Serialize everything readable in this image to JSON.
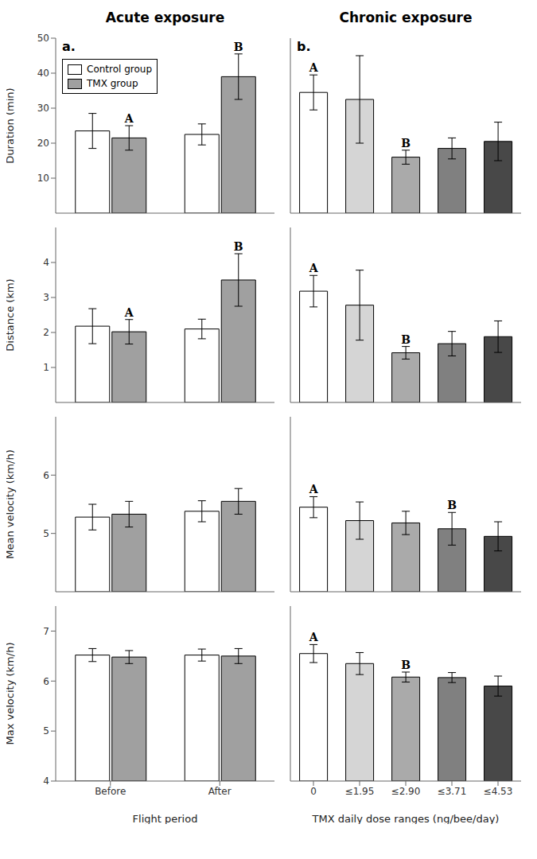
{
  "chart_data": [
    {
      "type": "bar",
      "title": "Acute exposure",
      "panel_label": "a.",
      "ylabel": "Duration (min)",
      "categories": [
        null,
        null
      ],
      "series": [
        {
          "name": "Control group",
          "color": "#ffffff",
          "values": [
            23.5,
            22.5
          ],
          "errors": [
            5.0,
            3.0
          ],
          "annotations": [
            null,
            null
          ]
        },
        {
          "name": "TMX group",
          "color": "#a0a0a0",
          "values": [
            21.5,
            39.0
          ],
          "errors": [
            3.5,
            6.5
          ],
          "annotations": [
            "A",
            "B"
          ]
        }
      ],
      "ylim": [
        0,
        50
      ],
      "yticks": [
        0,
        10,
        20,
        30,
        40,
        50
      ],
      "legend": "upper left",
      "tick_labels": "y"
    },
    {
      "type": "bar",
      "title": "Chronic exposure",
      "panel_label": "b.",
      "categories": [
        null,
        null,
        null,
        null,
        null
      ],
      "values": [
        34.5,
        32.5,
        16.0,
        18.5,
        20.5
      ],
      "errors": [
        5.0,
        12.5,
        2.0,
        3.0,
        5.5
      ],
      "colors": [
        "#ffffff",
        "#d5d5d5",
        "#aaaaaa",
        "#808080",
        "#484848"
      ],
      "annotations": [
        "A",
        null,
        "B",
        null,
        null
      ],
      "ylim": [
        0,
        50
      ],
      "yticks": [
        0,
        10,
        20,
        30,
        40,
        50
      ],
      "tick_labels": false
    },
    {
      "type": "bar",
      "ylabel": "Distance (km)",
      "categories": [
        null,
        null
      ],
      "series": [
        {
          "color": "#ffffff",
          "values": [
            2.18,
            2.1
          ],
          "errors": [
            0.5,
            0.28
          ],
          "annotations": [
            null,
            null
          ]
        },
        {
          "color": "#a0a0a0",
          "values": [
            2.02,
            3.5
          ],
          "errors": [
            0.35,
            0.75
          ],
          "annotations": [
            "A",
            "B"
          ]
        }
      ],
      "ylim": [
        0,
        5
      ],
      "yticks": [
        0,
        1,
        2,
        3,
        4
      ],
      "tick_labels": "y"
    },
    {
      "type": "bar",
      "categories": [
        null,
        null,
        null,
        null,
        null
      ],
      "values": [
        3.18,
        2.78,
        1.42,
        1.68,
        1.88
      ],
      "errors": [
        0.45,
        1.0,
        0.18,
        0.35,
        0.45
      ],
      "colors": [
        "#ffffff",
        "#d5d5d5",
        "#aaaaaa",
        "#808080",
        "#484848"
      ],
      "annotations": [
        "A",
        null,
        "B",
        null,
        null
      ],
      "ylim": [
        0,
        5
      ],
      "yticks": [
        0,
        1,
        2,
        3,
        4
      ],
      "tick_labels": false
    },
    {
      "type": "bar",
      "ylabel": "Mean velocity (km/h)",
      "categories": [
        null,
        null
      ],
      "series": [
        {
          "color": "#ffffff",
          "values": [
            5.28,
            5.38
          ],
          "errors": [
            0.22,
            0.18
          ]
        },
        {
          "color": "#a0a0a0",
          "values": [
            5.33,
            5.55
          ],
          "errors": [
            0.22,
            0.22
          ]
        }
      ],
      "ylim": [
        4,
        7
      ],
      "yticks": [
        4,
        5,
        6
      ],
      "tick_labels": "y"
    },
    {
      "type": "bar",
      "categories": [
        null,
        null,
        null,
        null,
        null
      ],
      "values": [
        5.45,
        5.22,
        5.18,
        5.08,
        4.95
      ],
      "errors": [
        0.18,
        0.32,
        0.2,
        0.28,
        0.25
      ],
      "colors": [
        "#ffffff",
        "#d5d5d5",
        "#aaaaaa",
        "#808080",
        "#484848"
      ],
      "annotations": [
        "A",
        null,
        null,
        "B",
        null
      ],
      "ylim": [
        4,
        7
      ],
      "yticks": [
        4,
        5,
        6
      ],
      "tick_labels": false
    },
    {
      "type": "bar",
      "ylabel": "Max velocity (km/h)",
      "xlabel": "Flight period",
      "categories": [
        "Before",
        "After"
      ],
      "series": [
        {
          "color": "#ffffff",
          "values": [
            6.52,
            6.52
          ],
          "errors": [
            0.13,
            0.12
          ]
        },
        {
          "color": "#a0a0a0",
          "values": [
            6.48,
            6.5
          ],
          "errors": [
            0.13,
            0.15
          ]
        }
      ],
      "ylim": [
        4,
        7.5
      ],
      "yticks": [
        4,
        5,
        6,
        7
      ]
    },
    {
      "type": "bar",
      "xlabel": "TMX daily dose ranges (ng/bee/day)",
      "categories": [
        "0",
        "≤1.95",
        "≤2.90",
        "≤3.71",
        "≤4.53"
      ],
      "values": [
        6.55,
        6.35,
        6.08,
        6.07,
        5.9
      ],
      "errors": [
        0.18,
        0.22,
        0.1,
        0.1,
        0.2
      ],
      "colors": [
        "#ffffff",
        "#d5d5d5",
        "#aaaaaa",
        "#808080",
        "#484848"
      ],
      "annotations": [
        "A",
        null,
        "B",
        null,
        null
      ],
      "ylim": [
        4,
        7.5
      ],
      "yticks": [
        4,
        5,
        6,
        7
      ],
      "tick_labels": "x"
    }
  ]
}
